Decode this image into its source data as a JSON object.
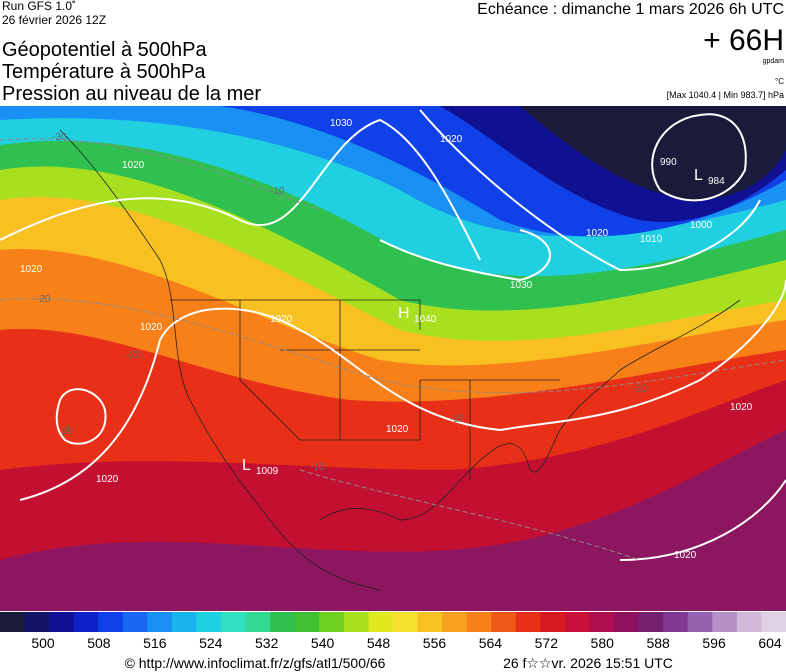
{
  "header": {
    "run": "Run GFS 1.0˚",
    "run_date": "26 février 2026 12Z",
    "titles": [
      "Géopotentiel à 500hPa",
      "Température à 500hPa",
      "Pression au niveau de la mer"
    ],
    "valid": "Echéance : dimanche 1 mars 2026 6h UTC",
    "lead": "+ 66H",
    "unit_geo": "gpdam",
    "unit_temp": "°C",
    "pressure_range": "[Max 1040.4 | Min 983.7] hPa"
  },
  "map_labels": [
    "1030",
    "1020",
    "1020",
    "1020",
    "1020",
    "1030",
    "H",
    "1040",
    "L",
    "984",
    "990",
    "1000",
    "1010",
    "1020",
    "1020",
    "L",
    "1009",
    "1020",
    "1020",
    "1020",
    "1020",
    "-30",
    "-20",
    "-20",
    "-20",
    "-10",
    "-20",
    "-10",
    "20"
  ],
  "colorbar": {
    "colors": [
      "#1a1a3a",
      "#141466",
      "#101092",
      "#0e20c8",
      "#1040e8",
      "#1868f4",
      "#1890f4",
      "#18b4ec",
      "#20d0e0",
      "#30e0c0",
      "#30d890",
      "#30c050",
      "#40c030",
      "#70d020",
      "#a8e020",
      "#e0e820",
      "#f8e030",
      "#f8c020",
      "#f8a020",
      "#f88018",
      "#f05818",
      "#e83018",
      "#d81820",
      "#c81038",
      "#b00c50",
      "#901060",
      "#782070",
      "#803890",
      "#9860b0",
      "#b890c8",
      "#d0b8d8",
      "#e0d0e4"
    ],
    "ticks": [
      "500",
      "508",
      "516",
      "524",
      "532",
      "540",
      "548",
      "556",
      "564",
      "572",
      "580",
      "588",
      "596",
      "604"
    ]
  },
  "footer": {
    "source": "© http://www.infoclimat.fr/z/gfs/atl1/500/66",
    "generated": "26 f☆☆vr. 2026 15:51 UTC"
  }
}
